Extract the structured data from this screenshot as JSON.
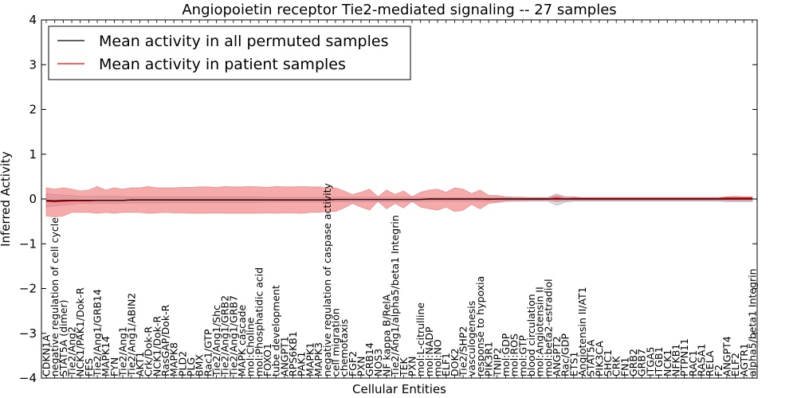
{
  "chart_data": {
    "type": "line",
    "title": "Angiopoietin receptor Tie2-mediated signaling -- 27 samples",
    "xlabel": "Cellular Entities",
    "ylabel": "Inferred Activity",
    "ylim": [
      -4,
      4
    ],
    "yticks": [
      "−4",
      "−3",
      "−2",
      "−1",
      "0",
      "1",
      "2",
      "3",
      "4"
    ],
    "yticks_values": [
      -4,
      -3,
      -2,
      -1,
      0,
      1,
      2,
      3,
      4
    ],
    "grid": false,
    "legend_position": "top-left",
    "categories": [
      "CDKN1A",
      "negative regulation of cell cycle",
      "STAT5A (dimer)",
      "Tie2/Ang2",
      "NCK1/PAK1/Dok-R",
      "FES",
      "Tie2/Ang1/GRB14",
      "MAPK14",
      "FYN",
      "Tie2/Ang1",
      "Tie2/Ang1/ABIN2",
      "AKT1",
      "Crk/Dok-R",
      "NCK1/Dok-R",
      "RasGAP/Dok-R",
      "MAPK8",
      "PLD2",
      "PLG",
      "BMX",
      "Rac1/GTP",
      "Tie2/Ang1/Shc",
      "Tie2/Ang1/GRB2",
      "Tie2/Ang1/GRB7",
      "MAPK cascade",
      "mol:Choline",
      "mol:Phosphatidic acid",
      "FOXO1",
      "tube development",
      "ANGPT1",
      "RPS6KB1",
      "PAK1",
      "MAPK1",
      "MAPK3",
      "negative regulation of caspase activity",
      "cell migration",
      "chemotaxis",
      "FGF2",
      "PXN",
      "GRB14",
      "NOS3",
      "NF kappa B/RelA",
      "Tie2/Ang1/alpha5/beta1 Integrin",
      "TEK",
      "PXN",
      "mol:L-citrulline",
      "mol:NADP",
      "mol:NO",
      "ELF1",
      "DOK2",
      "Tie2/SHP2",
      "vasculogenesis",
      "response to hypoxia",
      "PIK3R1",
      "TNIP2",
      "mol:GDP",
      "mol:ROS",
      "mol:GTP",
      "blood circulation",
      "mol:Angiotensin II",
      "mol:beta2-estradiol",
      "ANGPT2",
      "Rac/GDP",
      "ETS1",
      "Angiotensin II/AT1",
      "STAT5A",
      "PIK3CA",
      "SHC1",
      "CRK",
      "FN1",
      "GRB2",
      "GRB7",
      "ITGA5",
      "ITGB1",
      "NCK1",
      "NFKB1",
      "PTPN11",
      "RAC1",
      "RASA1",
      "RELA",
      "F2",
      "ANGPT4",
      "ELF2",
      "AGTR1",
      "alpha5/beta1 Integrin"
    ],
    "series": [
      {
        "name": "Mean activity in all permuted samples",
        "color": "#000000",
        "values": [
          -0.03,
          -0.04,
          -0.03,
          -0.03,
          -0.03,
          -0.03,
          -0.03,
          -0.03,
          -0.03,
          -0.03,
          -0.02,
          -0.02,
          -0.02,
          -0.02,
          -0.02,
          -0.02,
          -0.02,
          -0.02,
          -0.02,
          -0.02,
          -0.02,
          -0.02,
          -0.02,
          -0.02,
          -0.02,
          -0.02,
          -0.02,
          -0.02,
          -0.02,
          -0.02,
          -0.02,
          -0.02,
          -0.02,
          -0.02,
          -0.01,
          -0.01,
          -0.01,
          -0.01,
          -0.01,
          -0.01,
          -0.01,
          -0.01,
          -0.01,
          -0.01,
          -0.01,
          0,
          0,
          0,
          0,
          0,
          0,
          0,
          0,
          0,
          0,
          0,
          0,
          0,
          0,
          0,
          0,
          0,
          0,
          0,
          0,
          0,
          0,
          0,
          0,
          0,
          0,
          0,
          0,
          0,
          0,
          0,
          0,
          0,
          0,
          0,
          0,
          0,
          0,
          0
        ],
        "band_upper": [
          0.12,
          0.1,
          0.09,
          0.08,
          0.06,
          0.06,
          0.06,
          0.06,
          0.06,
          0.05,
          0.05,
          0.05,
          0.05,
          0.05,
          0.05,
          0.05,
          0.05,
          0.05,
          0.05,
          0.05,
          0.05,
          0.05,
          0.05,
          0.05,
          0.05,
          0.05,
          0.04,
          0.04,
          0.04,
          0.04,
          0.04,
          0.04,
          0.04,
          0.04,
          0.04,
          0.04,
          0.04,
          0.04,
          0.04,
          0.04,
          0.04,
          0.04,
          0.04,
          0.04,
          0.03,
          0.03,
          0.03,
          0.03,
          0.03,
          0.03,
          0.03,
          0.03,
          0.03,
          0.03,
          0.03,
          0.03,
          0.03,
          0.03,
          0.03,
          0.03,
          0.12,
          0.05,
          0.03,
          0.03,
          0.03,
          0.03,
          0.03,
          0.03,
          0.03,
          0.03,
          0.03,
          0.03,
          0.03,
          0.03,
          0.03,
          0.03,
          0.03,
          0.03,
          0.03,
          0.03,
          0.04,
          0.04,
          0.04,
          0.04
        ],
        "band_lower": [
          -0.18,
          -0.16,
          -0.14,
          -0.12,
          -0.1,
          -0.1,
          -0.1,
          -0.1,
          -0.1,
          -0.09,
          -0.09,
          -0.09,
          -0.09,
          -0.09,
          -0.08,
          -0.08,
          -0.08,
          -0.08,
          -0.08,
          -0.08,
          -0.08,
          -0.08,
          -0.08,
          -0.08,
          -0.08,
          -0.08,
          -0.07,
          -0.07,
          -0.07,
          -0.07,
          -0.07,
          -0.07,
          -0.07,
          -0.07,
          -0.06,
          -0.06,
          -0.06,
          -0.06,
          -0.06,
          -0.06,
          -0.06,
          -0.06,
          -0.06,
          -0.06,
          -0.05,
          -0.05,
          -0.05,
          -0.05,
          -0.05,
          -0.05,
          -0.05,
          -0.05,
          -0.05,
          -0.05,
          -0.05,
          -0.05,
          -0.05,
          -0.05,
          -0.05,
          -0.05,
          -0.14,
          -0.07,
          -0.05,
          -0.05,
          -0.05,
          -0.05,
          -0.05,
          -0.05,
          -0.05,
          -0.05,
          -0.05,
          -0.05,
          -0.05,
          -0.05,
          -0.05,
          -0.05,
          -0.05,
          -0.05,
          -0.05,
          -0.05,
          -0.06,
          -0.06,
          -0.06,
          -0.06
        ]
      },
      {
        "name": "Mean activity in patient samples",
        "color": "#ff0000",
        "values": [
          -0.05,
          -0.06,
          -0.05,
          -0.04,
          -0.04,
          -0.04,
          -0.03,
          -0.03,
          -0.03,
          -0.03,
          -0.02,
          -0.02,
          -0.02,
          -0.02,
          -0.02,
          -0.02,
          -0.02,
          -0.02,
          -0.02,
          -0.02,
          -0.02,
          -0.02,
          -0.02,
          -0.02,
          -0.02,
          -0.02,
          -0.02,
          -0.02,
          -0.02,
          -0.02,
          -0.02,
          -0.02,
          -0.02,
          -0.02,
          -0.01,
          -0.01,
          -0.01,
          -0.01,
          -0.01,
          -0.01,
          -0.01,
          -0.01,
          -0.01,
          -0.01,
          -0.01,
          0,
          0,
          0,
          0,
          0,
          0,
          0,
          -0.01,
          0,
          0,
          0,
          0,
          0,
          0,
          0,
          0.02,
          0,
          0.01,
          0.01,
          0.01,
          0.01,
          0.01,
          0.01,
          0.01,
          0.01,
          0.01,
          0.01,
          0.01,
          0.01,
          0.01,
          0.01,
          0.01,
          0.01,
          0.01,
          0.01,
          0.02,
          0.02,
          0.02,
          0.02
        ],
        "band_upper": [
          0.25,
          0.22,
          0.25,
          0.22,
          0.18,
          0.2,
          0.28,
          0.2,
          0.25,
          0.22,
          0.25,
          0.25,
          0.28,
          0.25,
          0.25,
          0.25,
          0.26,
          0.26,
          0.27,
          0.27,
          0.26,
          0.28,
          0.27,
          0.27,
          0.28,
          0.27,
          0.26,
          0.28,
          0.27,
          0.27,
          0.28,
          0.27,
          0.27,
          0.25,
          0.25,
          0.18,
          0.1,
          0.15,
          0.22,
          0.05,
          0.2,
          0.1,
          0.18,
          0.05,
          0.15,
          0.2,
          0.22,
          0.15,
          0.25,
          0.22,
          0.12,
          0.2,
          0.08,
          0.08,
          0.05,
          0.04,
          0.04,
          0.03,
          0.03,
          0.03,
          0.08,
          0.04,
          0.05,
          0.03,
          0.03,
          0.03,
          0.03,
          0.03,
          0.03,
          0.03,
          0.03,
          0.03,
          0.03,
          0.03,
          0.03,
          0.03,
          0.03,
          0.03,
          0.03,
          0.03,
          0.05,
          0.06,
          0.05,
          0.05
        ],
        "band_lower": [
          -0.38,
          -0.4,
          -0.38,
          -0.3,
          -0.3,
          -0.3,
          -0.32,
          -0.3,
          -0.32,
          -0.3,
          -0.3,
          -0.3,
          -0.32,
          -0.31,
          -0.3,
          -0.31,
          -0.31,
          -0.32,
          -0.32,
          -0.32,
          -0.31,
          -0.32,
          -0.32,
          -0.32,
          -0.32,
          -0.32,
          -0.31,
          -0.32,
          -0.31,
          -0.31,
          -0.32,
          -0.3,
          -0.3,
          -0.28,
          -0.28,
          -0.2,
          -0.1,
          -0.18,
          -0.25,
          -0.05,
          -0.22,
          -0.1,
          -0.2,
          -0.05,
          -0.18,
          -0.22,
          -0.25,
          -0.18,
          -0.28,
          -0.25,
          -0.12,
          -0.22,
          -0.1,
          -0.08,
          -0.05,
          -0.04,
          -0.04,
          -0.03,
          -0.03,
          -0.03,
          -0.06,
          -0.04,
          -0.03,
          -0.03,
          -0.03,
          -0.03,
          -0.03,
          -0.03,
          -0.03,
          -0.03,
          -0.03,
          -0.03,
          -0.03,
          -0.03,
          -0.03,
          -0.03,
          -0.03,
          -0.03,
          -0.03,
          -0.03,
          -0.04,
          -0.04,
          -0.04,
          -0.04
        ]
      }
    ]
  }
}
